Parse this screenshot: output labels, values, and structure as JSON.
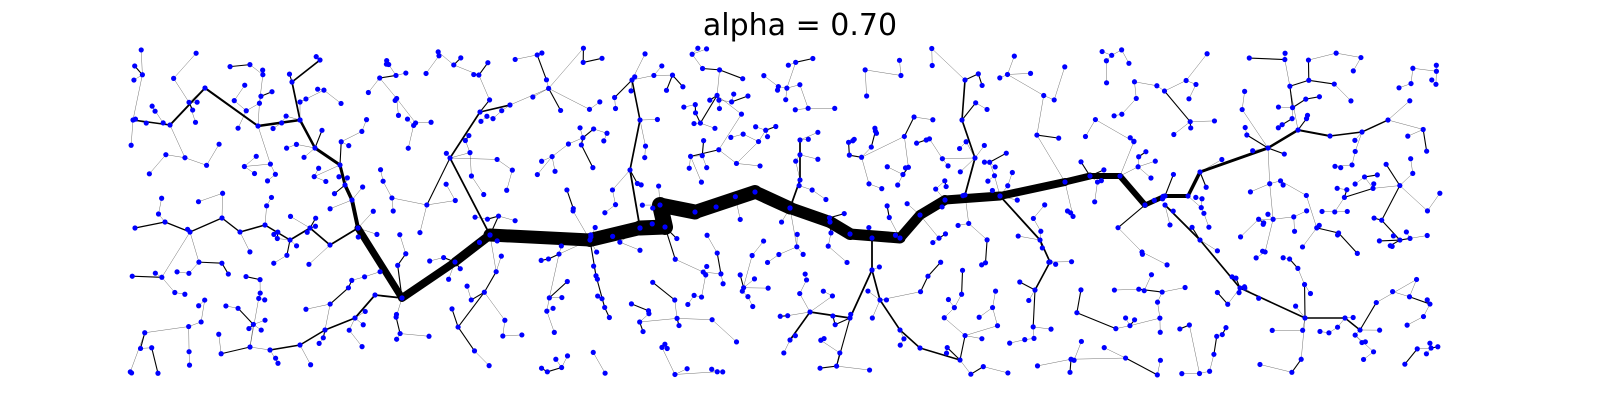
{
  "title": "alpha = 0.70",
  "colors": {
    "background": "#ffffff",
    "node": "#0000ff",
    "edge": "#000000"
  }
}
